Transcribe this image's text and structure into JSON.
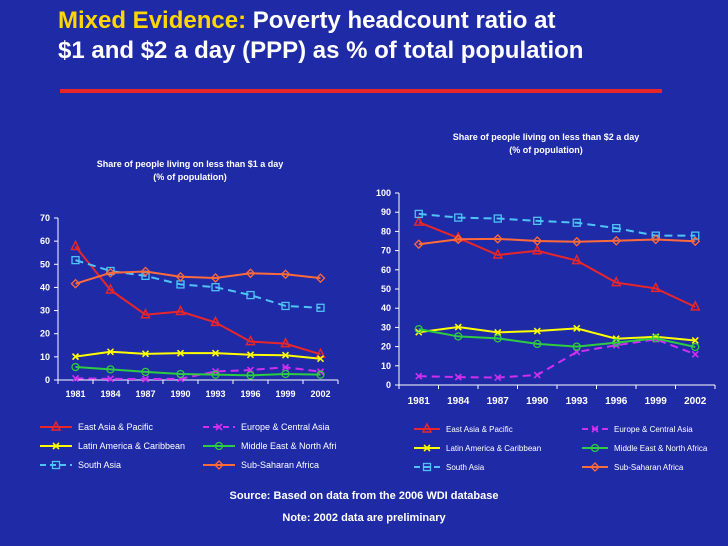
{
  "title": {
    "highlight": "Mixed Evidence:",
    "line1_rest": "Poverty headcount ratio at",
    "line2": "$1 and $2 a day (PPP) as % of total population"
  },
  "colors": {
    "background": "#1f2aa6",
    "title_accent": "#ffd700",
    "title_rule": "#e8262a",
    "text": "#ffffff"
  },
  "chart_data": [
    {
      "type": "line",
      "title": "Share of people living on less than $1 a day",
      "subtitle": "(% of population)",
      "x": [
        "1981",
        "1984",
        "1987",
        "1990",
        "1993",
        "1996",
        "1999",
        "2002"
      ],
      "ylim": [
        0,
        70
      ],
      "yticks": [
        "0",
        "10",
        "20",
        "30",
        "40",
        "50",
        "60",
        "70"
      ],
      "series": [
        {
          "name": "East Asia & Pacific",
          "color": "#e8262a",
          "marker": "triangle",
          "dash": "solid",
          "values": [
            57.7,
            38.9,
            28.2,
            29.6,
            24.9,
            16.6,
            15.7,
            11.1
          ]
        },
        {
          "name": "Europe & Central Asia",
          "color": "#d02ff0",
          "marker": "x",
          "dash": "dashed",
          "values": [
            0.7,
            0.5,
            0.4,
            0.5,
            3.7,
            4.3,
            5.5,
            3.6
          ]
        },
        {
          "name": "Latin America & Caribbean",
          "color": "#ffff00",
          "marker": "x",
          "dash": "solid",
          "values": [
            10.1,
            12.2,
            11.3,
            11.6,
            11.6,
            10.9,
            10.7,
            9.2
          ]
        },
        {
          "name": "Middle East & North Afri",
          "color": "#2ecc40",
          "marker": "circle",
          "dash": "solid",
          "values": [
            5.6,
            4.6,
            3.5,
            2.6,
            2.3,
            2.0,
            2.6,
            2.3
          ]
        },
        {
          "name": "South Asia",
          "color": "#4fc3f7",
          "marker": "square",
          "dash": "dashed",
          "values": [
            51.8,
            47.1,
            45.0,
            41.3,
            40.1,
            36.7,
            32.0,
            31.2
          ]
        },
        {
          "name": "Sub-Saharan Africa",
          "color": "#ff6a3a",
          "marker": "diamond",
          "dash": "solid",
          "values": [
            41.6,
            46.3,
            46.9,
            44.6,
            44.1,
            46.1,
            45.7,
            44.0
          ]
        }
      ]
    },
    {
      "type": "line",
      "title": "Share of people living on less than $2 a day",
      "subtitle": "(% of population)",
      "x": [
        "1981",
        "1984",
        "1987",
        "1990",
        "1993",
        "1996",
        "1999",
        "2002"
      ],
      "ylim": [
        0,
        100
      ],
      "yticks": [
        "0",
        "10",
        "20",
        "30",
        "40",
        "50",
        "60",
        "70",
        "80",
        "90",
        "100"
      ],
      "series": [
        {
          "name": "East Asia & Pacific",
          "color": "#e8262a",
          "marker": "triangle",
          "dash": "solid",
          "values": [
            84.8,
            76.6,
            67.7,
            69.9,
            64.8,
            53.3,
            50.3,
            40.7
          ]
        },
        {
          "name": "Europe & Central Asia",
          "color": "#d02ff0",
          "marker": "x",
          "dash": "dashed",
          "values": [
            4.6,
            4.1,
            3.9,
            5.2,
            17.2,
            20.7,
            23.8,
            16.0
          ]
        },
        {
          "name": "Latin America & Caribbean",
          "color": "#ffff00",
          "marker": "x",
          "dash": "solid",
          "values": [
            27.5,
            30.2,
            27.4,
            28.1,
            29.5,
            24.1,
            25.1,
            23.2
          ]
        },
        {
          "name": "Middle East & North Africa",
          "color": "#2ecc40",
          "marker": "circle",
          "dash": "solid",
          "values": [
            29.1,
            25.3,
            24.3,
            21.4,
            20.0,
            22.1,
            24.3,
            19.8
          ]
        },
        {
          "name": "South Asia",
          "color": "#4fc3f7",
          "marker": "square",
          "dash": "dashed",
          "values": [
            89.1,
            87.2,
            86.7,
            85.5,
            84.5,
            81.7,
            77.8,
            77.8
          ]
        },
        {
          "name": "Sub-Saharan Africa",
          "color": "#ff6a3a",
          "marker": "diamond",
          "dash": "solid",
          "values": [
            73.3,
            75.9,
            76.1,
            75.0,
            74.6,
            75.1,
            75.8,
            74.9
          ]
        }
      ]
    }
  ],
  "footer": {
    "source": "Source: Based on data from the 2006 WDI database",
    "note": "Note: 2002 data are preliminary"
  }
}
